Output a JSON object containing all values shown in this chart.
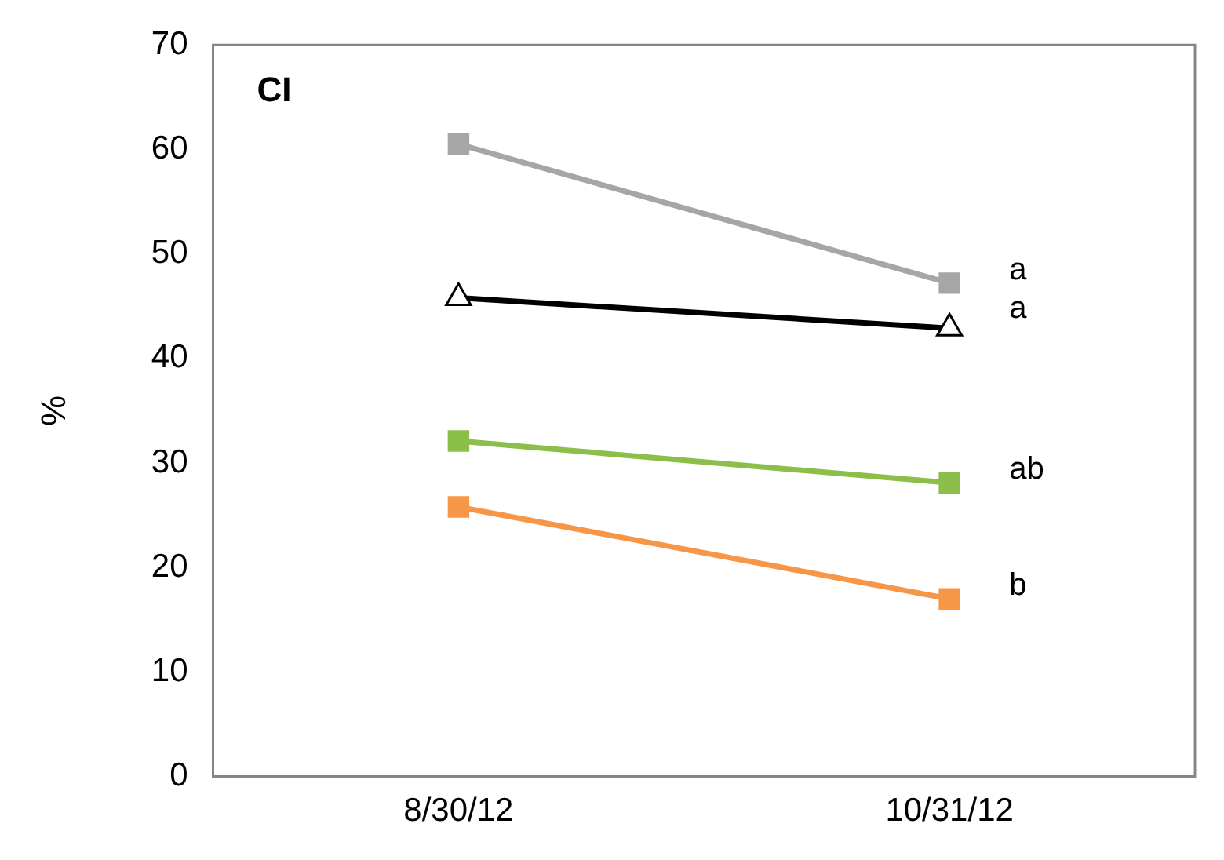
{
  "chart_data": {
    "type": "line",
    "ylabel": "%",
    "categories": [
      "8/30/12",
      "10/31/12"
    ],
    "series": [
      {
        "color": "#a6a6a6",
        "marker": "square",
        "values": [
          60.5,
          47.2
        ]
      },
      {
        "color": "#000000",
        "marker": "triangle",
        "values": [
          45.8,
          42.9
        ]
      },
      {
        "color": "#8cbf4a",
        "marker": "square",
        "values": [
          32.1,
          28.1
        ]
      },
      {
        "color": "#f79646",
        "marker": "square",
        "values": [
          25.8,
          17.0
        ]
      }
    ],
    "ylim": [
      0,
      70
    ],
    "yticks": [
      0,
      10,
      20,
      30,
      40,
      50,
      60,
      70
    ],
    "grid": false,
    "legend": false,
    "annotations": [
      "CI",
      {
        "text": "a",
        "x": "10/31/12",
        "y": 47.2
      },
      {
        "text": "a",
        "x": "10/31/12",
        "y": 43.5
      },
      {
        "text": "ab",
        "x": "10/31/12",
        "y": 28.1
      },
      {
        "text": "b",
        "x": "10/31/12",
        "y": 17.0
      }
    ]
  }
}
